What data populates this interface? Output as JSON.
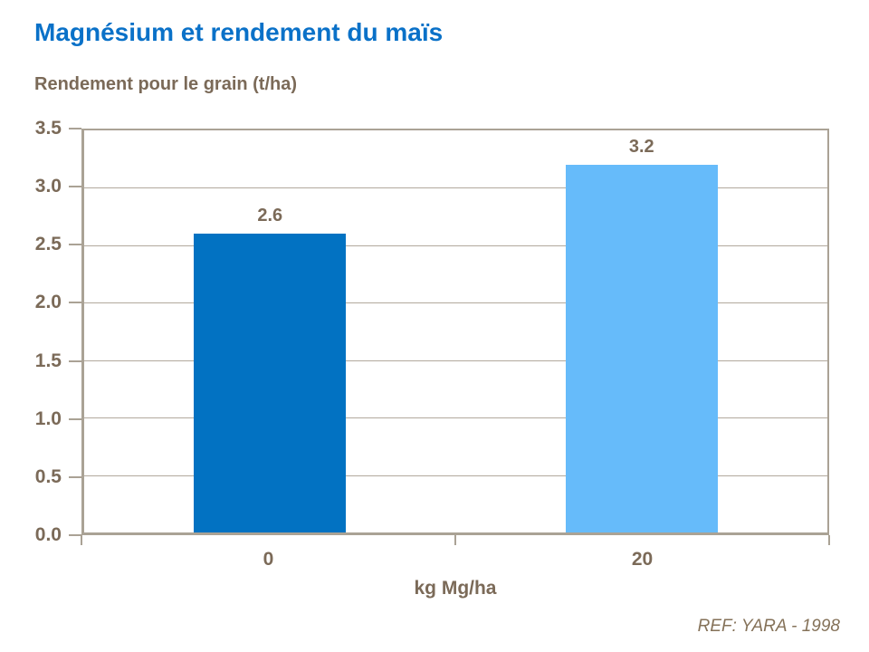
{
  "header": {
    "title": "Magnésium et rendement du maïs"
  },
  "chart_data": {
    "type": "bar",
    "title": "Magnésium et rendement du maïs",
    "categories": [
      "0",
      "20"
    ],
    "values": [
      2.6,
      3.2
    ],
    "value_labels": [
      "2.6",
      "3.2"
    ],
    "bar_colors": [
      "#0272c2",
      "#66bbfa"
    ],
    "xlabel": "kg Mg/ha",
    "ylabel": "Rendement pour le grain (t/ha)",
    "ylim": [
      0,
      3.5
    ],
    "ytick_step": 0.5,
    "ytick_decimals": 1,
    "grid": "horizontal",
    "legend": "none"
  },
  "footer": {
    "reference": "REF: YARA - 1998"
  },
  "colors": {
    "background": "#ffffff",
    "title-blue": "#0a71c8",
    "bar-dark-blue": "#0272c2",
    "bar-light-blue": "#66bbfa",
    "label-brown": "#7b6a58",
    "footer-brown": "#857259",
    "grid-line": "#b2a99d",
    "axis-line": "#aaa295"
  }
}
